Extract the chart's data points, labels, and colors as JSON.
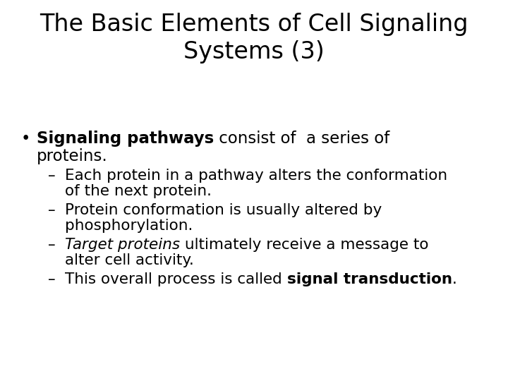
{
  "title_line1": "The Basic Elements of Cell Signaling",
  "title_line2": "Systems (3)",
  "title_fontsize": 24,
  "body_fontsize": 16.5,
  "sub_fontsize": 15.5,
  "background_color": "#ffffff",
  "text_color": "#000000",
  "bullet_bold": "Signaling pathways",
  "bullet_normal": " consist of  a series of",
  "bullet_normal2": "proteins.",
  "sub1_line1": "Each protein in a pathway alters the conformation",
  "sub1_line2": "of the next protein.",
  "sub2_line1": "Protein conformation is usually altered by",
  "sub2_line2": "phosphorylation.",
  "sub3_italic": "Target proteins",
  "sub3_normal": " ultimately receive a message to",
  "sub3_line2": "alter cell activity.",
  "sub4_normal1": "This overall process is called ",
  "sub4_bold": "signal transduction",
  "sub4_after": "."
}
